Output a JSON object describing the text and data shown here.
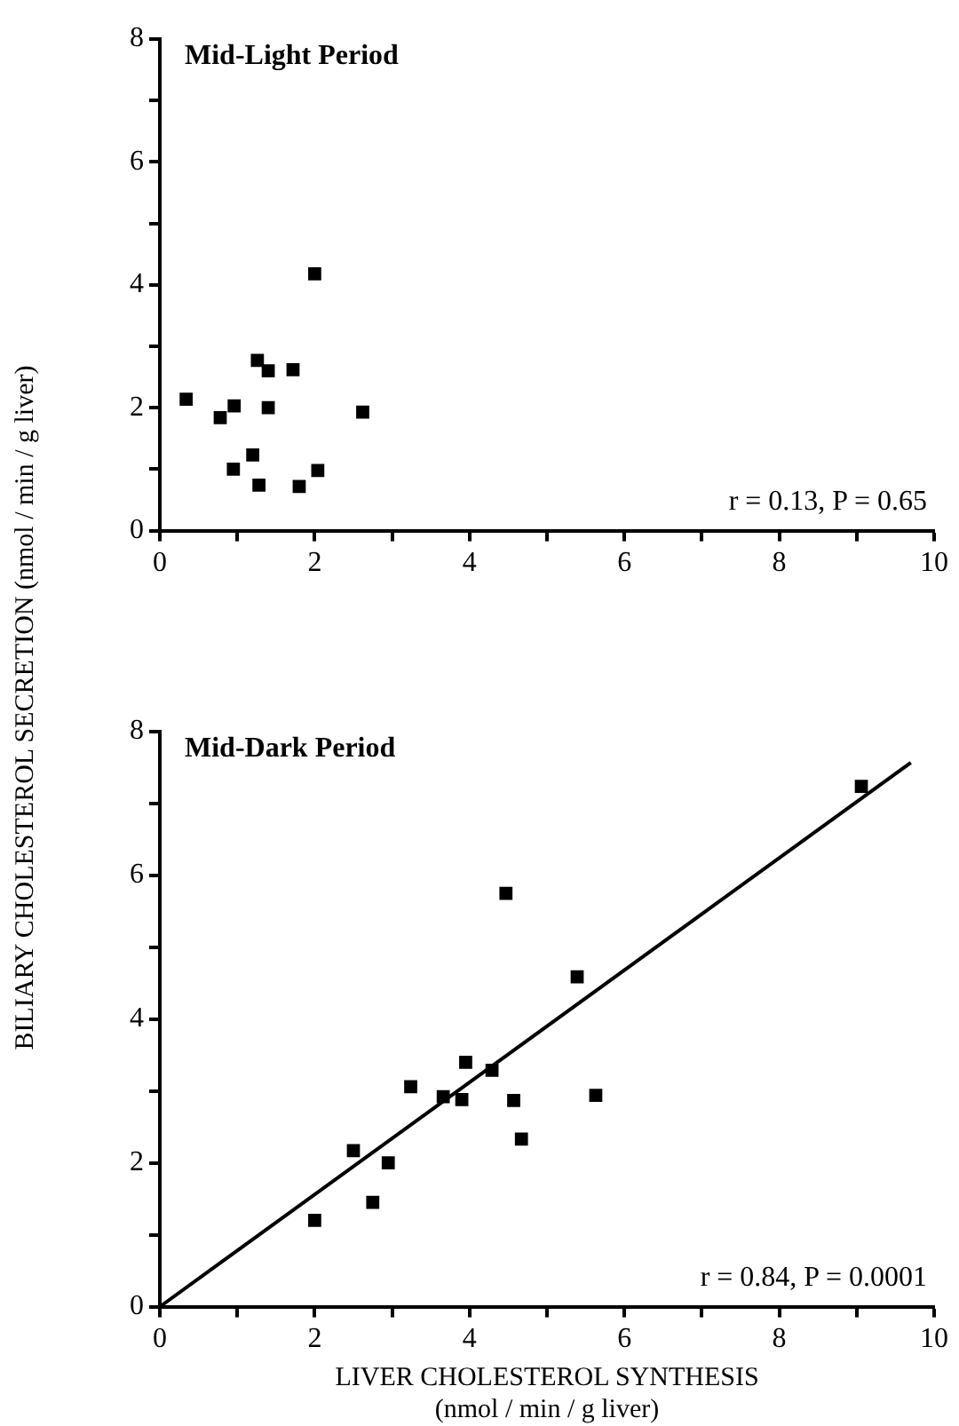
{
  "chart_data": [
    {
      "type": "scatter",
      "title": "Mid-Light Period",
      "ylabel": "BILIARY CHOLESTEROL SECRETION (nmol / min / g liver)",
      "annotations": [
        "r = 0.13, P = 0.65"
      ],
      "grid": false,
      "legend": false,
      "xlim": [
        0,
        10
      ],
      "xticks": [
        0,
        {
          "value": 1,
          "label": null
        },
        2,
        {
          "value": 3,
          "label": null
        },
        4,
        {
          "value": 5,
          "label": null
        },
        6,
        {
          "value": 7,
          "label": null
        },
        8,
        {
          "value": 9,
          "label": null
        },
        10
      ],
      "ylim": [
        0,
        8
      ],
      "yticks": [
        0,
        {
          "value": 1,
          "label": null
        },
        2,
        {
          "value": 3,
          "label": null
        },
        4,
        {
          "value": 5,
          "label": null
        },
        6,
        {
          "value": 7,
          "label": null
        },
        8
      ],
      "series": [
        {
          "color": "#000000",
          "marker": "square",
          "x": [
            0.34,
            0.78,
            0.96,
            0.95,
            1.2,
            1.28,
            1.26,
            1.4,
            1.72,
            1.4,
            2.0,
            1.8,
            2.04,
            2.62
          ],
          "values": [
            2.14,
            1.84,
            2.03,
            1.0,
            1.23,
            0.74,
            2.77,
            2.6,
            2.62,
            2.0,
            4.18,
            0.72,
            0.98,
            1.93
          ]
        }
      ]
    },
    {
      "type": "scatter",
      "title": "Mid-Dark Period",
      "xlabel": "LIVER CHOLESTEROL SYNTHESIS\n(nmol / min / g liver)",
      "annotations": [
        "r = 0.84, P = 0.0001"
      ],
      "grid": false,
      "legend": false,
      "xlim": [
        0,
        10
      ],
      "xticks": [
        0,
        {
          "value": 1,
          "label": null
        },
        2,
        {
          "value": 3,
          "label": null
        },
        4,
        {
          "value": 5,
          "label": null
        },
        6,
        {
          "value": 7,
          "label": null
        },
        8,
        {
          "value": 9,
          "label": null
        },
        10
      ],
      "ylim": [
        0,
        8
      ],
      "yticks": [
        0,
        {
          "value": 1,
          "label": null
        },
        2,
        {
          "value": 3,
          "label": null
        },
        4,
        {
          "value": 5,
          "label": null
        },
        6,
        {
          "value": 7,
          "label": null
        },
        8
      ],
      "series": [
        {
          "color": "#000000",
          "marker": "square",
          "x": [
            9.06,
            4.47,
            5.39,
            3.95,
            4.29,
            3.24,
            3.66,
            3.9,
            4.57,
            5.63,
            4.67,
            2.5,
            2.95,
            2.0,
            2.75
          ],
          "values": [
            7.24,
            5.75,
            4.59,
            3.4,
            3.29,
            3.06,
            2.92,
            2.88,
            2.87,
            2.94,
            2.33,
            2.17,
            2.0,
            1.2,
            1.45
          ]
        },
        {
          "type": "line",
          "color": "#000000",
          "marker": "none",
          "x": [
            0,
            9.7
          ],
          "values": [
            0,
            7.57
          ]
        }
      ]
    }
  ]
}
